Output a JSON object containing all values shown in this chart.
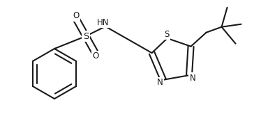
{
  "bg_color": "#ffffff",
  "line_color": "#1a1a1a",
  "line_width": 1.5,
  "font_size": 8.5,
  "figsize": [
    3.74,
    1.74
  ],
  "dpi": 100,
  "xlim": [
    0,
    374
  ],
  "ylim": [
    0,
    174
  ]
}
